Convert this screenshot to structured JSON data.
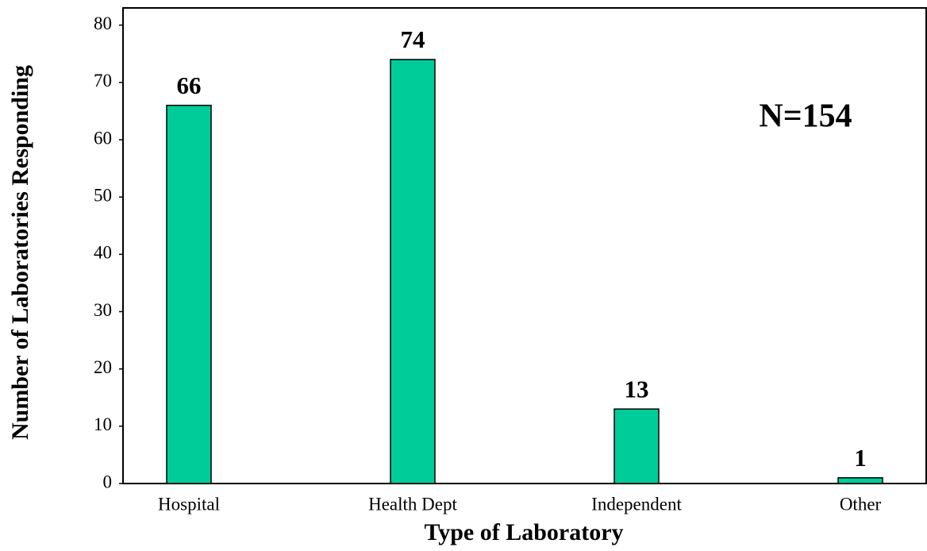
{
  "chart_data": {
    "type": "bar",
    "x_label": "Type of Laboratory",
    "y_label": "Number of Laboratories Responding",
    "annotation": "N=154",
    "categories": [
      "Hospital",
      "Health Dept",
      "Independent",
      "Other"
    ],
    "values": [
      66,
      74,
      13,
      1
    ],
    "color": "#00cc99",
    "ylim": [
      0,
      83
    ],
    "yticks": [
      0,
      10,
      20,
      30,
      40,
      50,
      60,
      70,
      80
    ],
    "grid": false
  }
}
